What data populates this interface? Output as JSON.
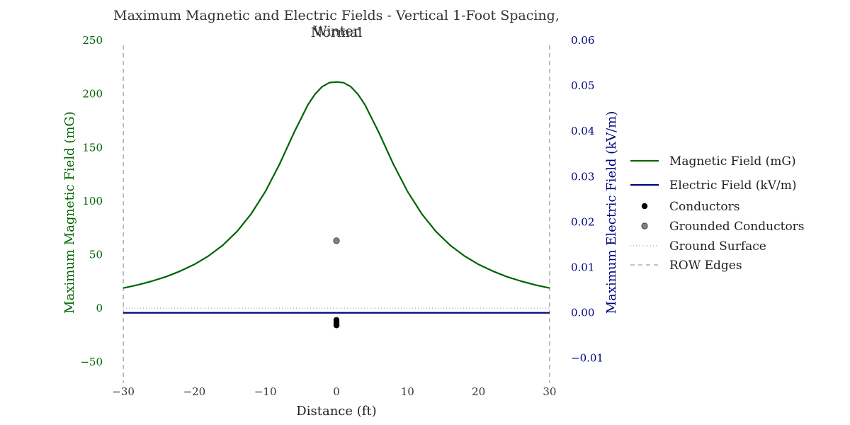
{
  "chart_data": {
    "type": "line",
    "title_line1": "Maximum Magnetic and Electric Fields - Vertical 1-Foot Spacing, Winter",
    "title_line2": "Normal",
    "xlabel": "Distance (ft)",
    "ylabel_left": "Maximum Magnetic Field (mG)",
    "ylabel_right": "Maximum Electric Field (kV/m)",
    "xlim": [
      -33,
      33
    ],
    "ylim_left": [
      -70,
      250
    ],
    "ylim_right": [
      -0.0155,
      0.06
    ],
    "x_ticks": [
      "−30",
      "−20",
      "−10",
      "0",
      "10",
      "20",
      "30"
    ],
    "y_left_ticks": [
      "−50",
      "0",
      "50",
      "100",
      "150",
      "200",
      "250"
    ],
    "y_right_ticks": [
      "−0.01",
      "0.00",
      "0.01",
      "0.02",
      "0.03",
      "0.04",
      "0.05",
      "0.06"
    ],
    "grid": false,
    "legend_position": "center-right",
    "colors": {
      "magnetic": "#006400",
      "electric": "#000080",
      "conductors": "#000000",
      "grounded": "#808080",
      "row_edges": "#888888",
      "right_axis_text": "#000080"
    },
    "series": [
      {
        "name": "Magnetic Field (mG)",
        "axis": "left",
        "x": [
          -30,
          -28,
          -26,
          -24,
          -22,
          -20,
          -18,
          -16,
          -14,
          -12,
          -10,
          -8,
          -6,
          -4,
          -3,
          -2,
          -1,
          0,
          1,
          2,
          3,
          4,
          6,
          8,
          10,
          12,
          14,
          16,
          18,
          20,
          22,
          24,
          26,
          28,
          30
        ],
        "y": [
          18.8,
          21.7,
          25.2,
          29.4,
          34.6,
          40.9,
          48.8,
          58.8,
          71.6,
          88.1,
          109.0,
          134.6,
          163.5,
          190.1,
          199.9,
          206.8,
          210.5,
          211.2,
          210.5,
          206.8,
          199.9,
          190.1,
          163.5,
          134.6,
          109.0,
          88.1,
          71.6,
          58.8,
          48.8,
          40.9,
          34.6,
          29.4,
          25.2,
          21.7,
          18.8
        ]
      },
      {
        "name": "Electric Field (kV/m)",
        "axis": "right",
        "x": [
          -30,
          30
        ],
        "y": [
          0.0,
          0.0
        ]
      }
    ],
    "conductors": {
      "name": "Conductors",
      "x": [
        0,
        0,
        0,
        0,
        0
      ],
      "y": [
        -11,
        -12.5,
        -14,
        -15,
        -16
      ]
    },
    "grounded_conductors": {
      "name": "Grounded Conductors",
      "x": [
        0
      ],
      "y": [
        63
      ]
    },
    "ground_surface": {
      "name": "Ground Surface",
      "y": 0
    },
    "row_edges": {
      "name": "ROW Edges",
      "x": [
        -30,
        30
      ]
    },
    "legend": [
      {
        "label": "Magnetic Field (mG)",
        "kind": "line",
        "color": "#006400"
      },
      {
        "label": "Electric Field (kV/m)",
        "kind": "line",
        "color": "#000080"
      },
      {
        "label": "Conductors",
        "kind": "dot",
        "color": "#000000"
      },
      {
        "label": "Grounded Conductors",
        "kind": "dot",
        "color": "#808080"
      },
      {
        "label": "Ground Surface",
        "kind": "dotted",
        "color": "#888888"
      },
      {
        "label": "ROW Edges",
        "kind": "dashed",
        "color": "#888888"
      }
    ]
  }
}
